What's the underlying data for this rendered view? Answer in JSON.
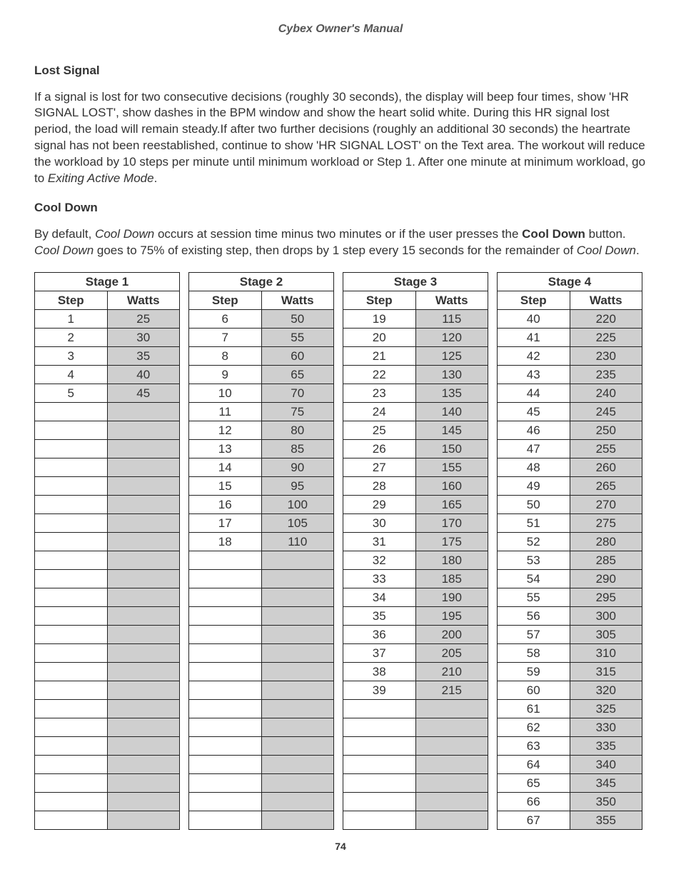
{
  "document_header": "Cybex Owner's Manual",
  "page_number": "74",
  "section_lost_signal": {
    "heading": "Lost Signal",
    "para_parts": {
      "p1": "If a signal is lost for two consecutive decisions (roughly 30 seconds), the display will beep four times, show 'HR SIGNAL LOST', show dashes in the BPM window and show the heart solid white. During this HR signal lost period, the load will remain steady.If after two further decisions (roughly an additional 30 seconds) the heartrate signal has not been reestablished, continue to show 'HR SIGNAL LOST' on the Text area. The workout will reduce the workload by 10 steps per minute until minimum workload or Step 1. After one minute at minimum workload, go to ",
      "p1_italic": "Exiting Active Mode",
      "p1_tail": "."
    }
  },
  "section_cool_down": {
    "heading": "Cool Down",
    "para_parts": {
      "a": "By default, ",
      "b_italic": "Cool Down",
      "c": " occurs at session time minus two minutes or if the user presses the ",
      "d_bold": "Cool Down",
      "e": " button. ",
      "f_italic": "Cool Down",
      "g": " goes to 75% of existing step, then drops by 1 step every 15 seconds for the remainder of ",
      "h_italic": "Cool Down",
      "i": "."
    }
  },
  "stages_table": {
    "total_rows": 28,
    "col_headers": {
      "step": "Step",
      "watts": "Watts"
    },
    "colors": {
      "border": "#222222",
      "watts_bg": "#cfcfcf",
      "step_bg": "#ffffff",
      "text": "#333333"
    },
    "stages": [
      {
        "title": "Stage 1",
        "rows": [
          {
            "step": "1",
            "watts": "25"
          },
          {
            "step": "2",
            "watts": "30"
          },
          {
            "step": "3",
            "watts": "35"
          },
          {
            "step": "4",
            "watts": "40"
          },
          {
            "step": "5",
            "watts": "45"
          }
        ]
      },
      {
        "title": "Stage 2",
        "rows": [
          {
            "step": "6",
            "watts": "50"
          },
          {
            "step": "7",
            "watts": "55"
          },
          {
            "step": "8",
            "watts": "60"
          },
          {
            "step": "9",
            "watts": "65"
          },
          {
            "step": "10",
            "watts": "70"
          },
          {
            "step": "11",
            "watts": "75"
          },
          {
            "step": "12",
            "watts": "80"
          },
          {
            "step": "13",
            "watts": "85"
          },
          {
            "step": "14",
            "watts": "90"
          },
          {
            "step": "15",
            "watts": "95"
          },
          {
            "step": "16",
            "watts": "100"
          },
          {
            "step": "17",
            "watts": "105"
          },
          {
            "step": "18",
            "watts": "110"
          }
        ]
      },
      {
        "title": "Stage 3",
        "rows": [
          {
            "step": "19",
            "watts": "115"
          },
          {
            "step": "20",
            "watts": "120"
          },
          {
            "step": "21",
            "watts": "125"
          },
          {
            "step": "22",
            "watts": "130"
          },
          {
            "step": "23",
            "watts": "135"
          },
          {
            "step": "24",
            "watts": "140"
          },
          {
            "step": "25",
            "watts": "145"
          },
          {
            "step": "26",
            "watts": "150"
          },
          {
            "step": "27",
            "watts": "155"
          },
          {
            "step": "28",
            "watts": "160"
          },
          {
            "step": "29",
            "watts": "165"
          },
          {
            "step": "30",
            "watts": "170"
          },
          {
            "step": "31",
            "watts": "175"
          },
          {
            "step": "32",
            "watts": "180"
          },
          {
            "step": "33",
            "watts": "185"
          },
          {
            "step": "34",
            "watts": "190"
          },
          {
            "step": "35",
            "watts": "195"
          },
          {
            "step": "36",
            "watts": "200"
          },
          {
            "step": "37",
            "watts": "205"
          },
          {
            "step": "38",
            "watts": "210"
          },
          {
            "step": "39",
            "watts": "215"
          }
        ]
      },
      {
        "title": "Stage 4",
        "rows": [
          {
            "step": "40",
            "watts": "220"
          },
          {
            "step": "41",
            "watts": "225"
          },
          {
            "step": "42",
            "watts": "230"
          },
          {
            "step": "43",
            "watts": "235"
          },
          {
            "step": "44",
            "watts": "240"
          },
          {
            "step": "45",
            "watts": "245"
          },
          {
            "step": "46",
            "watts": "250"
          },
          {
            "step": "47",
            "watts": "255"
          },
          {
            "step": "48",
            "watts": "260"
          },
          {
            "step": "49",
            "watts": "265"
          },
          {
            "step": "50",
            "watts": "270"
          },
          {
            "step": "51",
            "watts": "275"
          },
          {
            "step": "52",
            "watts": "280"
          },
          {
            "step": "53",
            "watts": "285"
          },
          {
            "step": "54",
            "watts": "290"
          },
          {
            "step": "55",
            "watts": "295"
          },
          {
            "step": "56",
            "watts": "300"
          },
          {
            "step": "57",
            "watts": "305"
          },
          {
            "step": "58",
            "watts": "310"
          },
          {
            "step": "59",
            "watts": "315"
          },
          {
            "step": "60",
            "watts": "320"
          },
          {
            "step": "61",
            "watts": "325"
          },
          {
            "step": "62",
            "watts": "330"
          },
          {
            "step": "63",
            "watts": "335"
          },
          {
            "step": "64",
            "watts": "340"
          },
          {
            "step": "65",
            "watts": "345"
          },
          {
            "step": "66",
            "watts": "350"
          },
          {
            "step": "67",
            "watts": "355"
          }
        ]
      }
    ]
  }
}
